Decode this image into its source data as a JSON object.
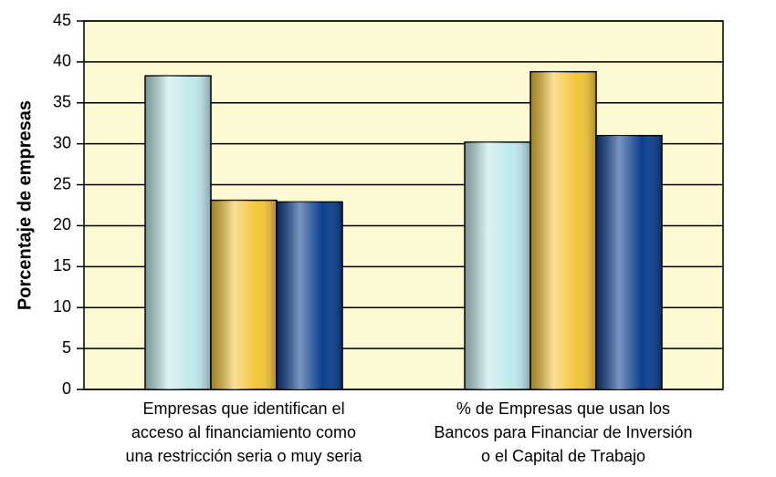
{
  "chart_data": {
    "type": "bar",
    "ylabel": "Porcentaje de empresas",
    "categories": [
      "Empresas que identifican el\nacceso al financiamiento como\nuna restricción seria o muy seria",
      "% de Empresas que usan los\nBancos para Financiar de Inversión\no el Capital de Trabajo"
    ],
    "series": [
      {
        "color": "#bfe9ec",
        "values": [
          38.3,
          30.2
        ]
      },
      {
        "color": "#f4c53a",
        "values": [
          23.1,
          38.8
        ]
      },
      {
        "color": "#0b3f8f",
        "values": [
          22.9,
          31.0
        ]
      }
    ],
    "ylim": [
      0,
      45
    ],
    "yticks": [
      0,
      5,
      10,
      15,
      20,
      25,
      30,
      35,
      40,
      45
    ],
    "grid": true,
    "plot_background": "#fdf9d2"
  }
}
